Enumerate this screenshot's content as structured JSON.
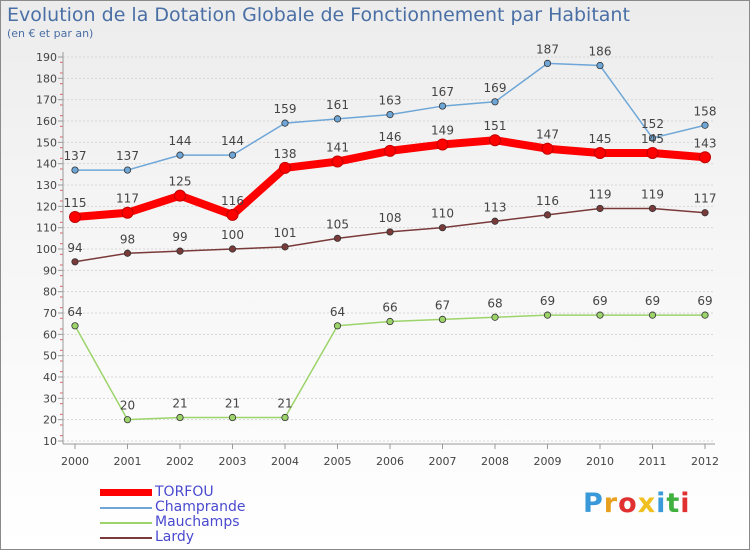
{
  "header": {
    "title": "Evolution de la Dotation Globale de Fonctionnement par Habitant",
    "subtitle": "(en € et par an)"
  },
  "logo": {
    "text": "Proxiti",
    "colors": [
      "#3a9ad9",
      "#e8a020",
      "#e03030",
      "#f0c020",
      "#3a9ad9",
      "#40b040",
      "#e03030"
    ]
  },
  "chart_data": {
    "type": "line",
    "x": [
      "2000",
      "2001",
      "2002",
      "2003",
      "2004",
      "2005",
      "2006",
      "2007",
      "2008",
      "2009",
      "2010",
      "2011",
      "2012"
    ],
    "ylim": [
      10,
      190
    ],
    "yticks": [
      10,
      20,
      30,
      40,
      50,
      60,
      70,
      80,
      90,
      100,
      110,
      120,
      130,
      140,
      150,
      160,
      170,
      180,
      190
    ],
    "grid": true,
    "legend_position": "bottom-left",
    "series": [
      {
        "name": "TORFOU",
        "color": "#ff0000",
        "values": [
          115,
          117,
          125,
          116,
          138,
          141,
          146,
          149,
          151,
          147,
          145,
          145,
          143
        ]
      },
      {
        "name": "Champrande",
        "color": "#6ea6d8",
        "values": [
          137,
          137,
          144,
          144,
          159,
          161,
          163,
          167,
          169,
          187,
          186,
          152,
          158
        ]
      },
      {
        "name": "Mauchamps",
        "color": "#9cd46a",
        "values": [
          64,
          20,
          21,
          21,
          21,
          64,
          66,
          67,
          68,
          69,
          69,
          69,
          69
        ]
      },
      {
        "name": "Lardy",
        "color": "#7a3a3a",
        "values": [
          94,
          98,
          99,
          100,
          101,
          105,
          108,
          110,
          113,
          116,
          119,
          119,
          117
        ]
      }
    ]
  }
}
